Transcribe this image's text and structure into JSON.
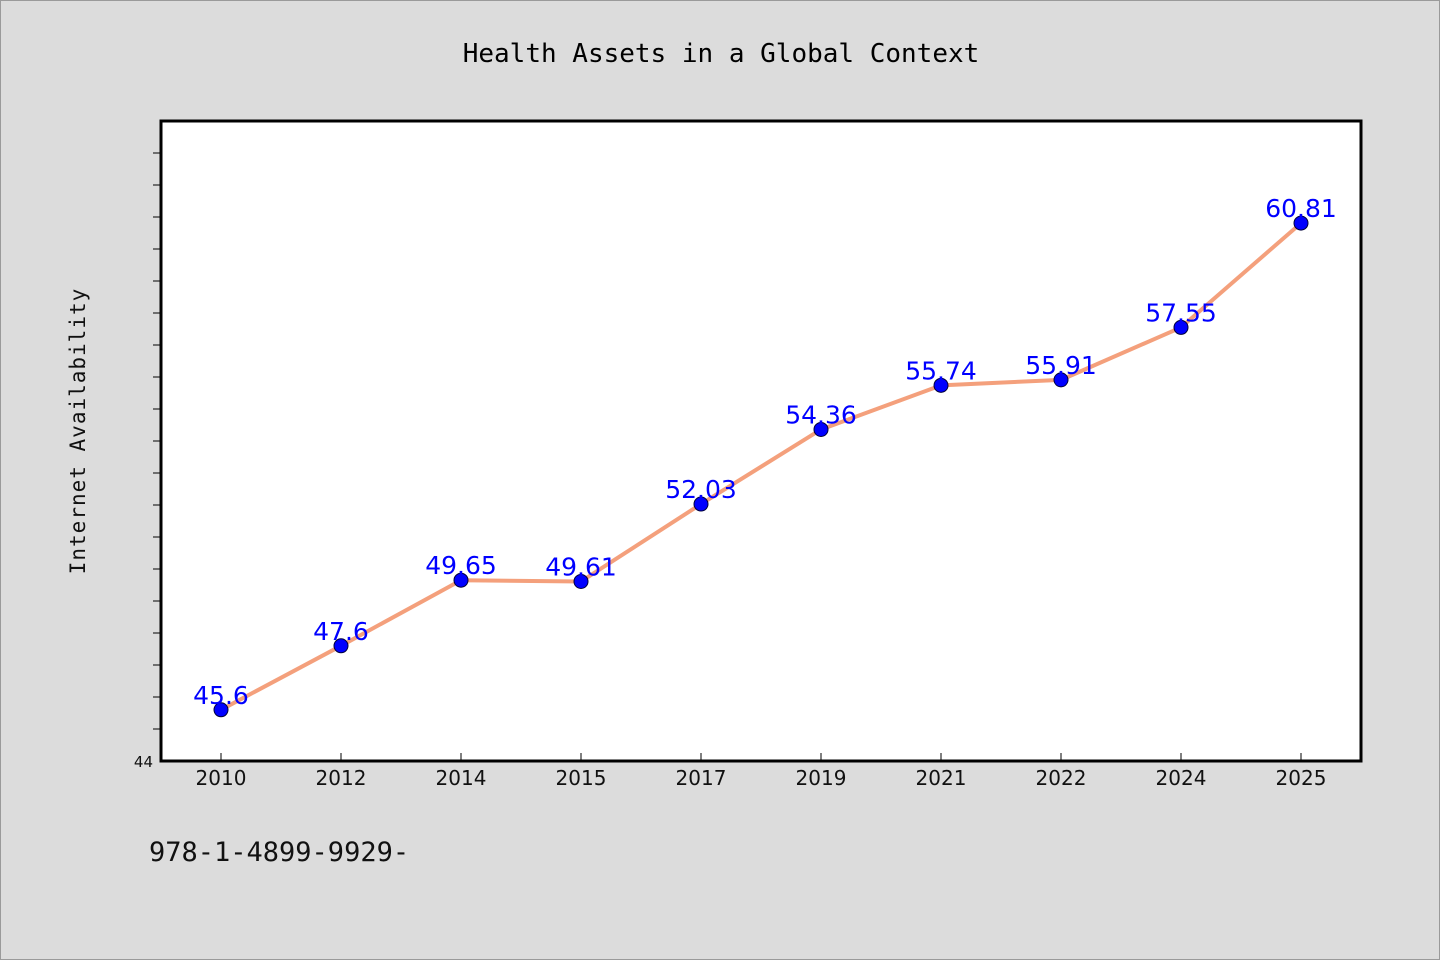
{
  "chart_data": {
    "type": "line",
    "title": "Health Assets in a Global Context",
    "xlabel": "",
    "ylabel": "Internet Availability",
    "categories": [
      "2010",
      "2012",
      "2014",
      "2015",
      "2017",
      "2019",
      "2021",
      "2022",
      "2024",
      "2025"
    ],
    "series": [
      {
        "values": [
          45.6,
          47.6,
          49.65,
          49.61,
          52.03,
          54.36,
          55.74,
          55.91,
          57.55,
          60.81
        ],
        "data_labels": [
          "45.6",
          "47.6",
          "49.65",
          "49.61",
          "52.03",
          "54.36",
          "55.74",
          "55.91",
          "57.55",
          "60.81"
        ]
      }
    ],
    "ylim": [
      44,
      64
    ],
    "y_min_label": "44",
    "grid": false,
    "legend": "none",
    "colors": {
      "line": "#f4a07c",
      "marker": "#0000ff",
      "labels": "#0000ff",
      "plot_background": "#ffffff",
      "page_background": "#dcdcdc"
    }
  },
  "footer": {
    "code": "978-1-4899-9929-"
  }
}
